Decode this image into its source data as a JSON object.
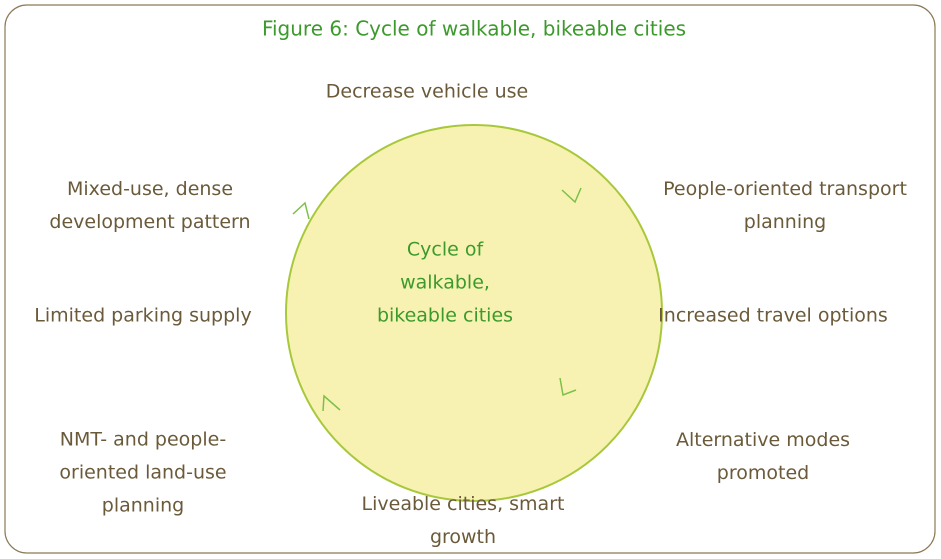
{
  "title": "Figure 6: Cycle of walkable, bikeable cities",
  "center": {
    "lines": [
      "Cycle of",
      "walkable,",
      "bikeable cities"
    ]
  },
  "nodes": [
    {
      "lines": [
        "Decrease vehicle use"
      ]
    },
    {
      "lines": [
        "People-oriented transport",
        "planning"
      ]
    },
    {
      "lines": [
        "Increased travel options"
      ]
    },
    {
      "lines": [
        "Alternative modes",
        "promoted"
      ]
    },
    {
      "lines": [
        "Liveable cities, smart",
        "growth"
      ]
    },
    {
      "lines": [
        "NMT- and people-",
        "oriented land-use",
        "planning"
      ]
    },
    {
      "lines": [
        "Limited parking supply"
      ]
    },
    {
      "lines": [
        "Mixed-use, dense",
        "development pattern"
      ]
    }
  ]
}
